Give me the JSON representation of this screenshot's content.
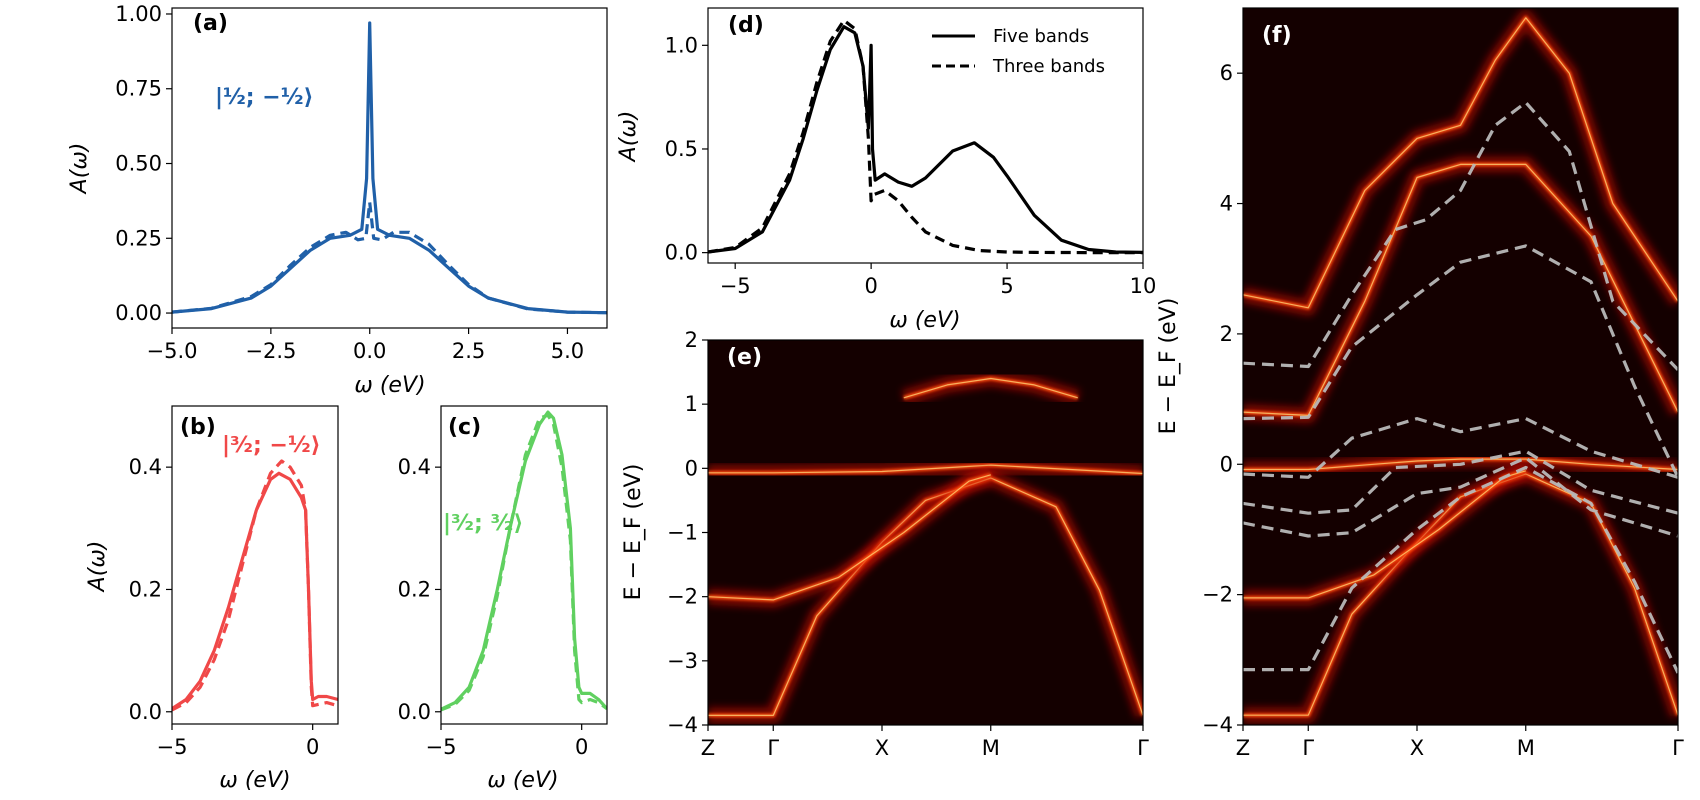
{
  "colors": {
    "blue": "#2060a8",
    "red": "#f04848",
    "green": "#60d060",
    "black": "#000000",
    "gray": "#b8b8b8"
  },
  "chart_data": [
    {
      "panel": "(a)",
      "type": "line",
      "title": "",
      "xlabel": "ω  (eV)",
      "ylabel": "A(ω)",
      "xlim": [
        -5.0,
        6.0
      ],
      "ylim": [
        -0.05,
        1.02
      ],
      "xticks": [
        "−5.0",
        "−2.5",
        "0.0",
        "2.5",
        "5.0"
      ],
      "yticks": [
        "0.00",
        "0.25",
        "0.50",
        "0.75",
        "1.00"
      ],
      "annotation": "|½; −½⟩",
      "color": "#2060a8",
      "series": [
        {
          "name": "Five bands",
          "style": "solid",
          "x": [
            -5,
            -4,
            -3,
            -2.5,
            -2,
            -1.5,
            -1,
            -0.5,
            -0.2,
            -0.08,
            0,
            0.08,
            0.2,
            0.5,
            1,
            1.5,
            2,
            2.5,
            3,
            4,
            5,
            6
          ],
          "y": [
            0.003,
            0.015,
            0.05,
            0.09,
            0.15,
            0.21,
            0.25,
            0.26,
            0.28,
            0.45,
            0.97,
            0.45,
            0.28,
            0.26,
            0.25,
            0.21,
            0.15,
            0.09,
            0.05,
            0.015,
            0.003,
            0.001
          ]
        },
        {
          "name": "Three bands",
          "style": "dashed",
          "x": [
            -5,
            -4,
            -3,
            -2.5,
            -2,
            -1.5,
            -1,
            -0.6,
            -0.3,
            -0.1,
            0,
            0.1,
            0.3,
            0.6,
            1,
            1.5,
            2,
            2.5,
            3,
            4,
            5,
            6
          ],
          "y": [
            0.003,
            0.016,
            0.055,
            0.095,
            0.16,
            0.22,
            0.26,
            0.27,
            0.245,
            0.25,
            0.37,
            0.25,
            0.245,
            0.27,
            0.27,
            0.23,
            0.16,
            0.095,
            0.05,
            0.014,
            0.003,
            0.001
          ]
        }
      ]
    },
    {
      "panel": "(b)",
      "type": "line",
      "title": "",
      "xlabel": "ω  (eV)",
      "ylabel": "A(ω)",
      "xlim": [
        -5,
        0.9
      ],
      "ylim": [
        -0.02,
        0.5
      ],
      "xticks": [
        "−5",
        "0"
      ],
      "yticks": [
        "0.0",
        "0.2",
        "0.4"
      ],
      "annotation": "|³⁄₂; −½⟩",
      "color": "#f04848",
      "series": [
        {
          "name": "Five bands",
          "style": "solid",
          "x": [
            -5,
            -4.5,
            -4,
            -3.5,
            -3,
            -2.5,
            -2,
            -1.5,
            -1.2,
            -0.8,
            -0.4,
            -0.25,
            -0.15,
            -0.05,
            0,
            0.2,
            0.5,
            0.9
          ],
          "y": [
            0.005,
            0.02,
            0.05,
            0.1,
            0.17,
            0.25,
            0.33,
            0.38,
            0.39,
            0.38,
            0.35,
            0.33,
            0.2,
            0.05,
            0.02,
            0.025,
            0.025,
            0.02
          ]
        },
        {
          "name": "Three bands",
          "style": "dashed",
          "x": [
            -5,
            -4.5,
            -4,
            -3.5,
            -3,
            -2.5,
            -2,
            -1.5,
            -1.1,
            -0.8,
            -0.4,
            -0.25,
            -0.15,
            -0.05,
            0,
            0.2,
            0.5,
            0.9
          ],
          "y": [
            0.003,
            0.015,
            0.04,
            0.085,
            0.15,
            0.24,
            0.33,
            0.39,
            0.41,
            0.4,
            0.37,
            0.33,
            0.2,
            0.04,
            0.01,
            0.012,
            0.015,
            0.01
          ]
        }
      ]
    },
    {
      "panel": "(c)",
      "type": "line",
      "title": "",
      "xlabel": "ω  (eV)",
      "ylabel": "",
      "xlim": [
        -5,
        0.9
      ],
      "ylim": [
        -0.02,
        0.5
      ],
      "xticks": [
        "−5",
        "0"
      ],
      "yticks": [
        "0.0",
        "0.2",
        "0.4"
      ],
      "annotation": "|³⁄₂; ³⁄₂⟩",
      "color": "#60d060",
      "series": [
        {
          "name": "Five bands",
          "style": "solid",
          "x": [
            -5,
            -4.5,
            -4,
            -3.5,
            -3,
            -2.5,
            -2,
            -1.5,
            -1.2,
            -1.0,
            -0.7,
            -0.4,
            -0.25,
            -0.1,
            0,
            0.3,
            0.6,
            0.9
          ],
          "y": [
            0.004,
            0.015,
            0.04,
            0.1,
            0.2,
            0.31,
            0.41,
            0.47,
            0.49,
            0.48,
            0.42,
            0.3,
            0.12,
            0.04,
            0.03,
            0.03,
            0.02,
            0.005
          ]
        },
        {
          "name": "Three bands",
          "style": "dashed",
          "x": [
            -5,
            -4.5,
            -4,
            -3.5,
            -3,
            -2.5,
            -2,
            -1.5,
            -1.2,
            -1.0,
            -0.7,
            -0.4,
            -0.25,
            -0.1,
            0,
            0.3,
            0.6,
            0.9
          ],
          "y": [
            0.003,
            0.012,
            0.035,
            0.09,
            0.19,
            0.31,
            0.42,
            0.48,
            0.485,
            0.47,
            0.4,
            0.28,
            0.1,
            0.02,
            0.015,
            0.02,
            0.015,
            0.005
          ]
        }
      ]
    },
    {
      "panel": "(d)",
      "type": "line",
      "title": "",
      "xlabel": "ω  (eV)",
      "ylabel": "A(ω)",
      "xlim": [
        -6,
        10
      ],
      "ylim": [
        -0.05,
        1.18
      ],
      "xticks": [
        "−5",
        "0",
        "5",
        "10"
      ],
      "yticks": [
        "0.0",
        "0.5",
        "1.0"
      ],
      "legend": {
        "position": "top-right",
        "entries": [
          "Five bands",
          "Three bands"
        ]
      },
      "color": "#000000",
      "series": [
        {
          "name": "Five bands",
          "style": "solid",
          "x": [
            -6,
            -5,
            -4,
            -3,
            -2.5,
            -2,
            -1.5,
            -1,
            -0.6,
            -0.3,
            -0.1,
            0,
            0.05,
            0.15,
            0.5,
            1,
            1.5,
            2,
            3,
            3.8,
            4.5,
            5,
            6,
            7,
            8,
            9,
            10
          ],
          "y": [
            0.003,
            0.02,
            0.1,
            0.35,
            0.55,
            0.78,
            0.98,
            1.09,
            1.06,
            0.9,
            0.6,
            1.0,
            0.5,
            0.35,
            0.38,
            0.34,
            0.32,
            0.36,
            0.49,
            0.53,
            0.46,
            0.37,
            0.18,
            0.06,
            0.015,
            0.003,
            0.001
          ]
        },
        {
          "name": "Three bands",
          "style": "dashed",
          "x": [
            -6,
            -5,
            -4,
            -3,
            -2.5,
            -2,
            -1.5,
            -1,
            -0.6,
            -0.3,
            -0.1,
            0,
            0.1,
            0.5,
            1,
            1.5,
            2,
            3,
            4,
            5,
            6,
            8,
            10
          ],
          "y": [
            0.003,
            0.025,
            0.12,
            0.38,
            0.58,
            0.82,
            1.02,
            1.12,
            1.08,
            0.9,
            0.55,
            0.25,
            0.28,
            0.3,
            0.25,
            0.17,
            0.1,
            0.035,
            0.01,
            0.003,
            0.001,
            0.0,
            0.0
          ]
        }
      ]
    },
    {
      "panel": "(e)",
      "type": "heatmap",
      "title": "",
      "xlabel": "",
      "ylabel": "E − E_F  (eV)",
      "ylim": [
        -4,
        2
      ],
      "xticks": [
        "Z",
        "Γ",
        "X",
        "M",
        "Γ"
      ],
      "yticks": [
        "−4",
        "−3",
        "−2",
        "−1",
        "0",
        "1",
        "2"
      ],
      "k_points": [
        0,
        0.15,
        0.4,
        0.65,
        1.0
      ],
      "bands": [
        {
          "k": [
            0,
            0.15,
            0.25,
            0.4,
            0.5,
            0.65,
            0.8,
            0.9,
            1.0
          ],
          "E": [
            -3.85,
            -3.85,
            -2.3,
            -1.15,
            -0.5,
            -0.15,
            -0.6,
            -1.9,
            -3.85
          ]
        },
        {
          "k": [
            0,
            0.15,
            0.4,
            0.65,
            1.0
          ],
          "E": [
            -0.07,
            -0.07,
            -0.05,
            0.05,
            -0.08
          ]
        },
        {
          "k": [
            0,
            0.15,
            0.3,
            0.45,
            0.6,
            0.65
          ],
          "E": [
            -2.0,
            -2.05,
            -1.7,
            -1.0,
            -0.2,
            -0.1
          ]
        },
        {
          "k": [
            0.45,
            0.55,
            0.65,
            0.75,
            0.85
          ],
          "E": [
            1.1,
            1.3,
            1.4,
            1.3,
            1.1
          ]
        }
      ]
    },
    {
      "panel": "(f)",
      "type": "heatmap",
      "title": "",
      "xlabel": "",
      "ylabel": "E − E_F  (eV)",
      "ylim": [
        -4,
        7
      ],
      "xticks": [
        "Z",
        "Γ",
        "X",
        "M",
        "Γ"
      ],
      "yticks": [
        "−4",
        "−2",
        "0",
        "2",
        "4",
        "6"
      ],
      "k_points": [
        0,
        0.15,
        0.4,
        0.65,
        1.0
      ],
      "bands": [
        {
          "k": [
            0,
            0.15,
            0.28,
            0.4,
            0.5,
            0.58,
            0.65,
            0.75,
            0.85,
            1.0
          ],
          "E": [
            2.6,
            2.4,
            4.2,
            5.0,
            5.2,
            6.2,
            6.85,
            6.0,
            4.0,
            2.5
          ]
        },
        {
          "k": [
            0,
            0.15,
            0.28,
            0.4,
            0.5,
            0.65,
            0.8,
            1.0
          ],
          "E": [
            0.8,
            0.75,
            2.5,
            4.4,
            4.6,
            4.6,
            3.5,
            0.8
          ]
        },
        {
          "k": [
            0,
            0.15,
            0.3,
            0.4,
            0.5,
            0.65,
            0.8,
            1.0
          ],
          "E": [
            -0.08,
            -0.08,
            0.0,
            0.05,
            0.08,
            0.08,
            0.0,
            -0.08
          ]
        },
        {
          "k": [
            0,
            0.15,
            0.25,
            0.4,
            0.5,
            0.65,
            0.8,
            0.9,
            1.0
          ],
          "E": [
            -3.85,
            -3.85,
            -2.3,
            -1.2,
            -0.5,
            -0.15,
            -0.6,
            -1.9,
            -3.85
          ]
        },
        {
          "k": [
            0,
            0.15,
            0.3,
            0.45,
            0.6,
            0.65
          ],
          "E": [
            -2.05,
            -2.05,
            -1.7,
            -1.0,
            -0.2,
            -0.1
          ]
        }
      ],
      "dashed_bands": [
        {
          "k": [
            0,
            0.15,
            0.25,
            0.35,
            0.42,
            0.5,
            0.58,
            0.65,
            0.75,
            0.85,
            1.0
          ],
          "E": [
            1.55,
            1.5,
            2.6,
            3.6,
            3.75,
            4.2,
            5.2,
            5.55,
            4.8,
            2.5,
            1.45
          ]
        },
        {
          "k": [
            0,
            0.15,
            0.25,
            0.4,
            0.5,
            0.65,
            0.8,
            0.9,
            1.0
          ],
          "E": [
            0.7,
            0.72,
            1.8,
            2.6,
            3.1,
            3.35,
            2.8,
            1.2,
            -0.2
          ]
        },
        {
          "k": [
            0,
            0.15,
            0.25,
            0.4,
            0.5,
            0.65,
            0.8,
            1.0
          ],
          "E": [
            -0.15,
            -0.2,
            0.4,
            0.7,
            0.5,
            0.7,
            0.2,
            -0.2
          ]
        },
        {
          "k": [
            0,
            0.15,
            0.25,
            0.35,
            0.5,
            0.65,
            0.8,
            1.0
          ],
          "E": [
            -0.6,
            -0.75,
            -0.7,
            -0.05,
            0.0,
            0.2,
            -0.4,
            -0.75
          ]
        },
        {
          "k": [
            0,
            0.15,
            0.25,
            0.4,
            0.5,
            0.65,
            0.8,
            1.0
          ],
          "E": [
            -0.9,
            -1.1,
            -1.05,
            -0.45,
            -0.35,
            0.1,
            -0.7,
            -1.1
          ]
        },
        {
          "k": [
            0,
            0.15,
            0.25,
            0.4,
            0.5,
            0.65,
            0.8,
            0.9,
            1.0
          ],
          "E": [
            -3.15,
            -3.15,
            -1.9,
            -1.0,
            -0.5,
            -0.05,
            -0.6,
            -1.8,
            -3.2
          ]
        }
      ]
    }
  ]
}
